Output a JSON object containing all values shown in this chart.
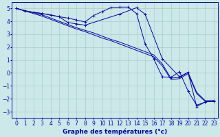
{
  "background_color": "#cce8e8",
  "grid_color": "#aacccc",
  "line_color": "#0000aa",
  "xlabel": "Graphe des températures (°c)",
  "xlabel_fontsize": 6.5,
  "tick_fontsize": 5.5,
  "xlim": [
    -0.5,
    23.5
  ],
  "ylim": [
    -3.5,
    5.5
  ],
  "yticks": [
    -3,
    -2,
    -1,
    0,
    1,
    2,
    3,
    4,
    5
  ],
  "xticks": [
    0,
    1,
    2,
    3,
    4,
    5,
    6,
    7,
    8,
    9,
    10,
    11,
    12,
    13,
    14,
    15,
    16,
    17,
    18,
    19,
    20,
    21,
    22,
    23
  ],
  "line1_x": [
    0,
    1,
    3,
    4,
    5,
    6,
    7,
    8,
    9,
    10,
    11,
    12,
    13,
    14,
    15,
    16,
    17,
    18,
    19,
    20,
    21,
    22,
    23
  ],
  "line1_y": [
    5.0,
    4.8,
    4.6,
    4.5,
    4.35,
    4.25,
    4.1,
    3.95,
    4.45,
    4.75,
    5.05,
    5.1,
    5.1,
    4.6,
    2.25,
    1.1,
    -0.3,
    -0.35,
    0.1,
    -1.4,
    -2.5,
    -2.25,
    -2.2
  ],
  "line2_x": [
    0,
    1,
    3,
    5,
    6,
    7,
    8,
    12,
    14,
    15,
    17,
    19,
    20,
    21,
    22,
    23
  ],
  "line2_y": [
    5.0,
    4.8,
    4.6,
    4.35,
    3.9,
    3.8,
    3.7,
    4.55,
    5.05,
    4.55,
    1.1,
    -0.3,
    0.05,
    -2.6,
    -2.25,
    -2.15
  ],
  "line3_x": [
    0,
    3,
    4,
    5,
    6,
    7,
    8,
    9,
    10,
    11,
    12,
    13,
    14,
    15,
    16,
    17,
    18,
    19,
    20,
    21,
    22,
    23
  ],
  "line3_y": [
    5.0,
    4.5,
    4.25,
    4.0,
    3.75,
    3.5,
    3.3,
    3.1,
    2.85,
    2.6,
    2.4,
    2.15,
    1.9,
    1.65,
    1.4,
    0.7,
    -0.4,
    -0.35,
    0.05,
    -1.5,
    -2.15,
    -2.15
  ],
  "line4_x": [
    0,
    3,
    4,
    5,
    6,
    7,
    8,
    9,
    10,
    11,
    12,
    13,
    14,
    15,
    16,
    17,
    18,
    19,
    20,
    21,
    22,
    23
  ],
  "line4_y": [
    5.0,
    4.4,
    4.15,
    3.9,
    3.65,
    3.4,
    3.2,
    2.95,
    2.7,
    2.5,
    2.25,
    2.0,
    1.75,
    1.5,
    1.25,
    0.55,
    -0.5,
    -0.45,
    -0.05,
    -1.6,
    -2.2,
    -2.2
  ]
}
